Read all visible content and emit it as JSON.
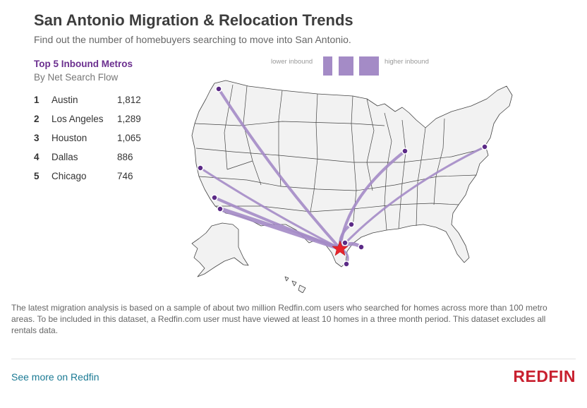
{
  "header": {
    "title": "San Antonio Migration & Relocation Trends",
    "subtitle": "Find out the number of homebuyers searching to move into San Antonio."
  },
  "sidebar": {
    "heading": "Top 5 Inbound Metros",
    "subheading": "By Net Search Flow",
    "metros": [
      {
        "rank": "1",
        "name": "Austin",
        "count": "1,812"
      },
      {
        "rank": "2",
        "name": "Los Angeles",
        "count": "1,289"
      },
      {
        "rank": "3",
        "name": "Houston",
        "count": "1,065"
      },
      {
        "rank": "4",
        "name": "Dallas",
        "count": "886"
      },
      {
        "rank": "5",
        "name": "Chicago",
        "count": "746"
      }
    ]
  },
  "legend": {
    "low_label": "lower inbound",
    "high_label": "higher inbound"
  },
  "map": {
    "destination": "San Antonio",
    "flow_color": "#a48bc6",
    "origin_color": "#5b2a86",
    "destination_marker_color": "#e8232a",
    "state_fill": "#f2f2f2",
    "state_stroke": "#444444"
  },
  "footer": {
    "note": "The latest migration analysis is based on a sample of about two million Redfin.com users who searched for homes across more than 100 metro areas. To be included in this dataset, a Redfin.com user must have viewed at least 10 homes in a three month period. This dataset excludes all rentals data.",
    "link_text": "See more on Redfin",
    "logo": "REDFIN",
    "logo_color": "#c8202f"
  }
}
